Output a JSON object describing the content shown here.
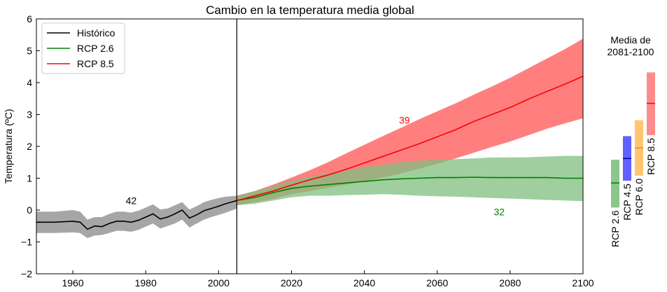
{
  "chart_data": [
    {
      "type": "line",
      "title": "Cambio en la temperatura media global",
      "xlabel": "",
      "ylabel": "Temperatura (ºC)",
      "xlim": [
        1950,
        2100
      ],
      "ylim": [
        -2,
        6
      ],
      "xticks": [
        "1960",
        "1980",
        "2000",
        "2020",
        "2040",
        "2060",
        "2080",
        "2100"
      ],
      "yticks": [
        "−2",
        "−1",
        "0",
        "1",
        "2",
        "3",
        "4",
        "5",
        "6"
      ],
      "legend": {
        "placement": "top-left",
        "entries": [
          "Histórico",
          "RCP 2.6",
          "RCP 8.5"
        ]
      },
      "divider_year": 2005,
      "colors": {
        "historic": "#000000",
        "historic_band": "#a6a6a6",
        "rcp26": "#008000",
        "rcp26_band": "#7fbf7f",
        "rcp85": "#ff0000",
        "rcp85_band": "#ff7f7f"
      },
      "series": [
        {
          "name": "Histórico",
          "x": [
            1950,
            1955,
            1960,
            1962,
            1964,
            1966,
            1968,
            1970,
            1972,
            1974,
            1976,
            1978,
            1980,
            1982,
            1984,
            1986,
            1988,
            1990,
            1992,
            1994,
            1996,
            1998,
            2000,
            2002,
            2005
          ],
          "y": [
            -0.38,
            -0.38,
            -0.35,
            -0.38,
            -0.6,
            -0.5,
            -0.52,
            -0.42,
            -0.35,
            -0.35,
            -0.38,
            -0.32,
            -0.22,
            -0.12,
            -0.28,
            -0.22,
            -0.12,
            0.0,
            -0.25,
            -0.15,
            -0.02,
            0.05,
            0.12,
            0.2,
            0.3
          ],
          "band_upper": [
            -0.05,
            -0.05,
            0.0,
            -0.05,
            -0.3,
            -0.22,
            -0.22,
            -0.12,
            -0.05,
            -0.05,
            -0.08,
            -0.02,
            0.08,
            0.18,
            0.02,
            0.05,
            0.15,
            0.25,
            0.02,
            0.12,
            0.25,
            0.32,
            0.38,
            0.42,
            0.45
          ],
          "band_lower": [
            -0.72,
            -0.72,
            -0.7,
            -0.72,
            -0.88,
            -0.8,
            -0.78,
            -0.72,
            -0.65,
            -0.65,
            -0.68,
            -0.62,
            -0.52,
            -0.42,
            -0.58,
            -0.5,
            -0.42,
            -0.3,
            -0.55,
            -0.42,
            -0.3,
            -0.22,
            -0.15,
            -0.08,
            0.05
          ],
          "count_label": "42",
          "count_at": [
            1976,
            0.3
          ]
        },
        {
          "name": "RCP 2.6",
          "x": [
            2005,
            2010,
            2015,
            2020,
            2025,
            2030,
            2035,
            2040,
            2045,
            2050,
            2055,
            2060,
            2065,
            2070,
            2075,
            2080,
            2085,
            2090,
            2095,
            2100
          ],
          "y": [
            0.3,
            0.4,
            0.55,
            0.68,
            0.75,
            0.8,
            0.85,
            0.9,
            0.95,
            0.98,
            1.0,
            1.02,
            1.02,
            1.03,
            1.02,
            1.02,
            1.02,
            1.02,
            1.0,
            1.0
          ],
          "band_upper": [
            0.45,
            0.6,
            0.75,
            0.92,
            1.05,
            1.15,
            1.25,
            1.35,
            1.42,
            1.5,
            1.55,
            1.58,
            1.6,
            1.62,
            1.65,
            1.65,
            1.66,
            1.68,
            1.7,
            1.7
          ],
          "band_lower": [
            0.15,
            0.2,
            0.3,
            0.4,
            0.45,
            0.45,
            0.47,
            0.48,
            0.5,
            0.48,
            0.45,
            0.43,
            0.42,
            0.4,
            0.38,
            0.36,
            0.34,
            0.32,
            0.3,
            0.28
          ],
          "count_label": "32",
          "count_at": [
            2077,
            -0.05
          ]
        },
        {
          "name": "RCP 8.5",
          "x": [
            2005,
            2010,
            2015,
            2020,
            2025,
            2030,
            2035,
            2040,
            2045,
            2050,
            2055,
            2060,
            2065,
            2070,
            2075,
            2080,
            2085,
            2090,
            2095,
            2100
          ],
          "y": [
            0.3,
            0.45,
            0.6,
            0.78,
            0.95,
            1.1,
            1.28,
            1.48,
            1.68,
            1.88,
            2.08,
            2.3,
            2.52,
            2.78,
            3.0,
            3.22,
            3.48,
            3.72,
            3.95,
            4.2
          ],
          "band_upper": [
            0.45,
            0.6,
            0.8,
            1.02,
            1.25,
            1.5,
            1.78,
            2.05,
            2.32,
            2.58,
            2.85,
            3.1,
            3.35,
            3.62,
            3.88,
            4.15,
            4.45,
            4.75,
            5.05,
            5.38
          ],
          "band_lower": [
            0.15,
            0.25,
            0.35,
            0.5,
            0.6,
            0.7,
            0.8,
            0.9,
            1.02,
            1.15,
            1.3,
            1.45,
            1.62,
            1.8,
            1.98,
            2.15,
            2.35,
            2.55,
            2.72,
            2.88
          ],
          "count_label": "39",
          "count_at": [
            2051,
            2.82
          ]
        }
      ]
    },
    {
      "type": "bar",
      "title": "Media de\n2081-2100",
      "categories": [
        "RCP 2.6",
        "RCP 4.5",
        "RCP 6.0",
        "RCP 8.5"
      ],
      "low": [
        0.08,
        0.92,
        1.08,
        2.35
      ],
      "high": [
        1.58,
        2.32,
        2.82,
        4.32
      ],
      "mean": [
        0.85,
        1.62,
        1.95,
        3.35
      ],
      "fill_colors": [
        "#7fbf7f",
        "#5050ff",
        "#ffbf60",
        "#ff7f7f"
      ],
      "mean_colors": [
        "#008000",
        "#0000a0",
        "#ff8c00",
        "#ff0000"
      ]
    }
  ]
}
